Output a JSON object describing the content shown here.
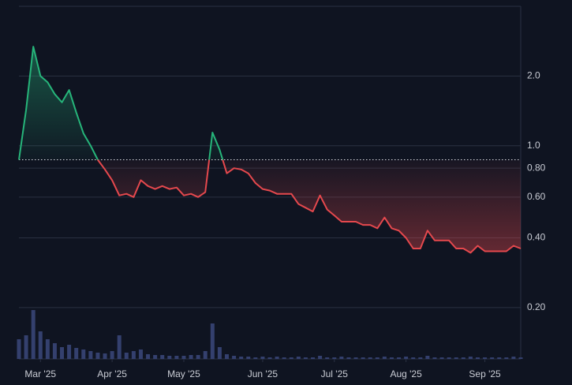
{
  "chart_data": {
    "type": "line",
    "log_scale": true,
    "grid": true,
    "categories": [
      null,
      null,
      null,
      "Mar '25",
      null,
      null,
      null,
      null,
      null,
      null,
      null,
      null,
      null,
      "Apr '25",
      null,
      null,
      null,
      null,
      null,
      null,
      null,
      null,
      null,
      "May '25",
      null,
      null,
      null,
      null,
      null,
      null,
      null,
      null,
      null,
      null,
      "Jun '25",
      null,
      null,
      null,
      null,
      null,
      null,
      null,
      null,
      null,
      "Jul '25",
      null,
      null,
      null,
      null,
      null,
      null,
      null,
      null,
      null,
      "Aug '25",
      null,
      null,
      null,
      null,
      null,
      null,
      null,
      null,
      null,
      null,
      "Sep '25",
      null,
      null,
      null,
      null,
      null
    ],
    "values": [
      0.87,
      1.43,
      2.68,
      2.0,
      1.88,
      1.67,
      1.54,
      1.74,
      1.39,
      1.13,
      1.0,
      0.87,
      0.79,
      0.71,
      0.61,
      0.62,
      0.6,
      0.71,
      0.67,
      0.65,
      0.67,
      0.65,
      0.66,
      0.61,
      0.62,
      0.6,
      0.63,
      1.14,
      0.96,
      0.76,
      0.8,
      0.79,
      0.76,
      0.69,
      0.65,
      0.64,
      0.62,
      0.62,
      0.62,
      0.56,
      0.54,
      0.52,
      0.61,
      0.53,
      0.5,
      0.47,
      0.47,
      0.47,
      0.455,
      0.455,
      0.44,
      0.49,
      0.44,
      0.43,
      0.4,
      0.36,
      0.36,
      0.43,
      0.39,
      0.39,
      0.39,
      0.36,
      0.36,
      0.345,
      0.37,
      0.35,
      0.35,
      0.35,
      0.35,
      0.37,
      0.36
    ],
    "baseline": 0.87,
    "colors": {
      "above": "#26b57a",
      "below": "#e5484d"
    },
    "ylim": [
      0.12,
      4.0
    ],
    "yticks": [
      {
        "value": 0.2,
        "label": "0.20"
      },
      {
        "value": 0.4,
        "label": "0.40"
      },
      {
        "value": 0.6,
        "label": "0.60"
      },
      {
        "value": 0.8,
        "label": "0.80"
      },
      {
        "value": 1,
        "label": "1.0"
      },
      {
        "value": 2,
        "label": "2.0"
      }
    ],
    "volume": {
      "color": "#34406e",
      "values": [
        25,
        30,
        62,
        35,
        25,
        20,
        15,
        18,
        14,
        12,
        10,
        8,
        7,
        10,
        30,
        8,
        10,
        12,
        6,
        5,
        5,
        4,
        4,
        4,
        5,
        5,
        10,
        45,
        15,
        6,
        4,
        3,
        3,
        2,
        3,
        2,
        3,
        2,
        2,
        3,
        2,
        2,
        4,
        2,
        2,
        3,
        2,
        2,
        2,
        2,
        2,
        3,
        2,
        2,
        3,
        2,
        2,
        4,
        2,
        2,
        2,
        2,
        2,
        3,
        2,
        2,
        2,
        2,
        2,
        3,
        2
      ]
    }
  }
}
